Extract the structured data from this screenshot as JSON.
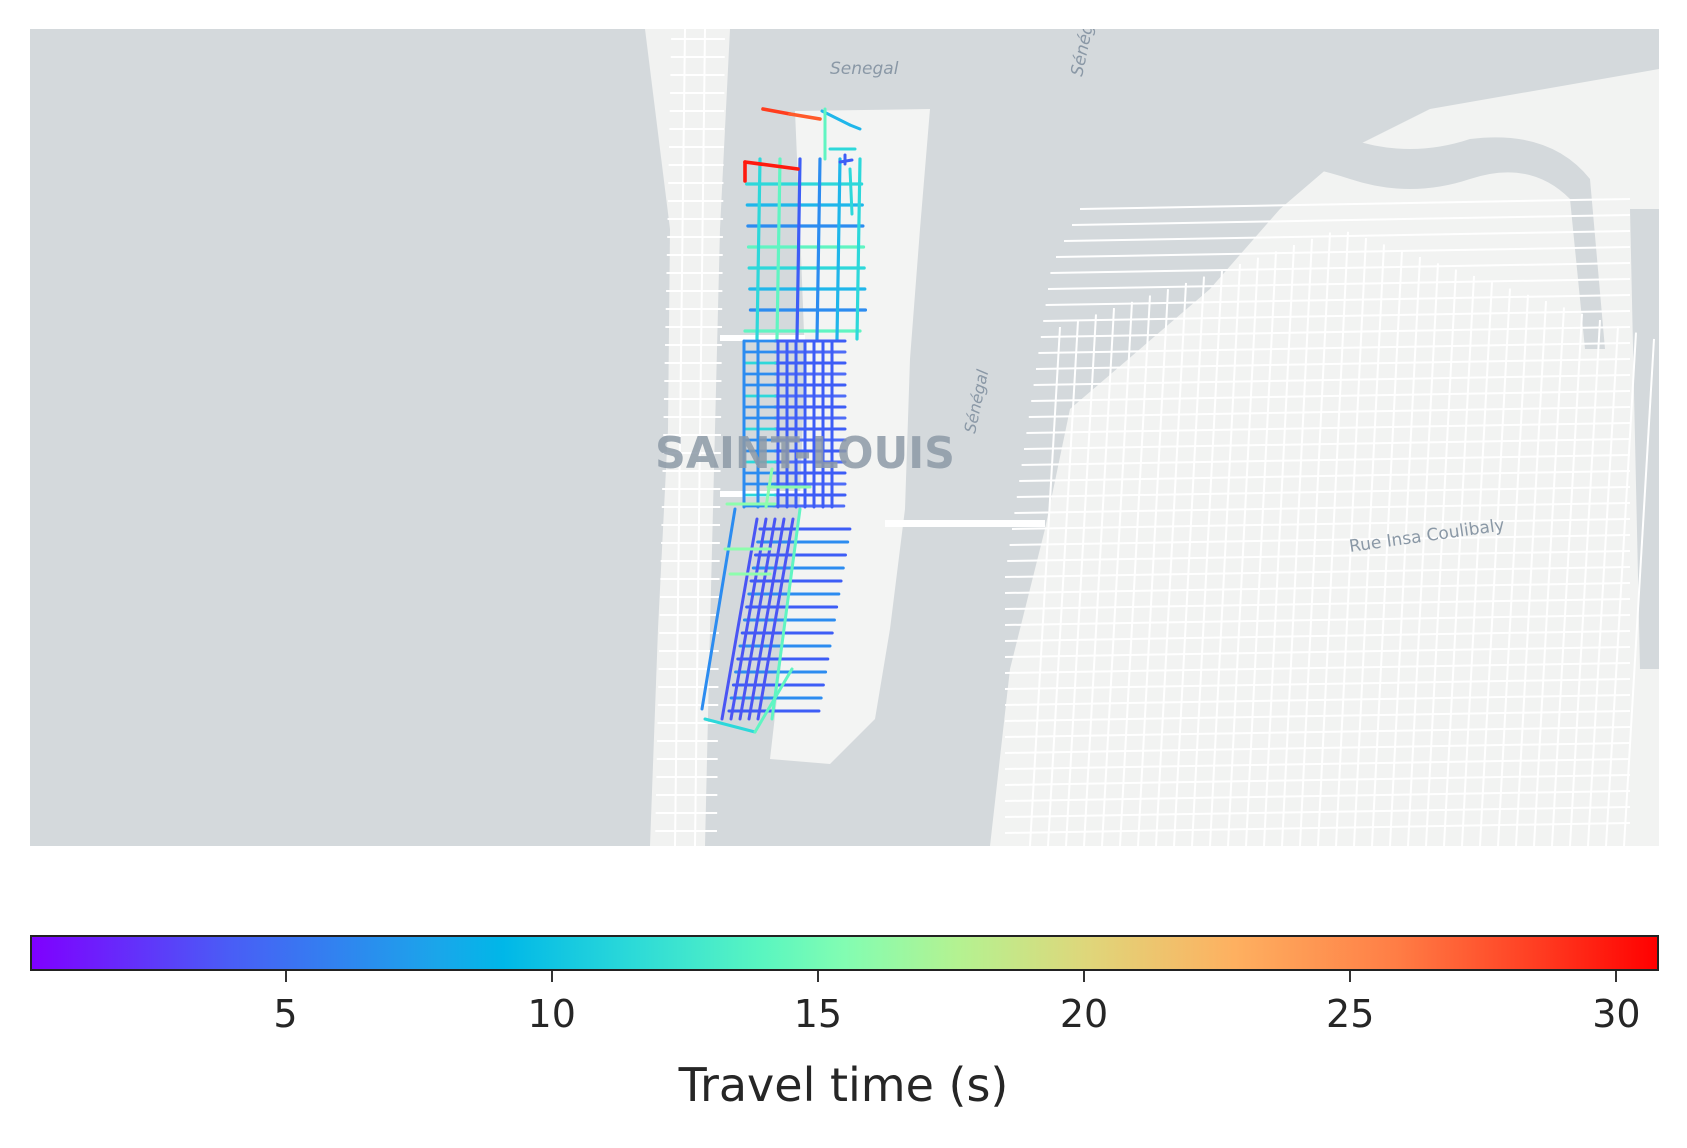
{
  "map": {
    "labels": {
      "river_north": "Senegal",
      "river_northeast": "Sénég",
      "river_mid": "Sénégal",
      "city": "SAINT-LOUIS",
      "street": "Rue Insa Coulibaly"
    },
    "colors": {
      "water": "#d4d9dc",
      "land": "#f2f3f2",
      "land_alt": "#ecedec",
      "roads": "#ffffff",
      "label": "#8a98a6"
    },
    "network_metric": "Travel time (s)"
  },
  "colorbar": {
    "label": "Travel time (s)",
    "colormap": "rainbow",
    "min": 0.2,
    "max": 30.8,
    "ticks": [
      "5",
      "10",
      "15",
      "20",
      "25",
      "30"
    ],
    "tick_values": [
      5,
      10,
      15,
      20,
      25,
      30
    ]
  }
}
